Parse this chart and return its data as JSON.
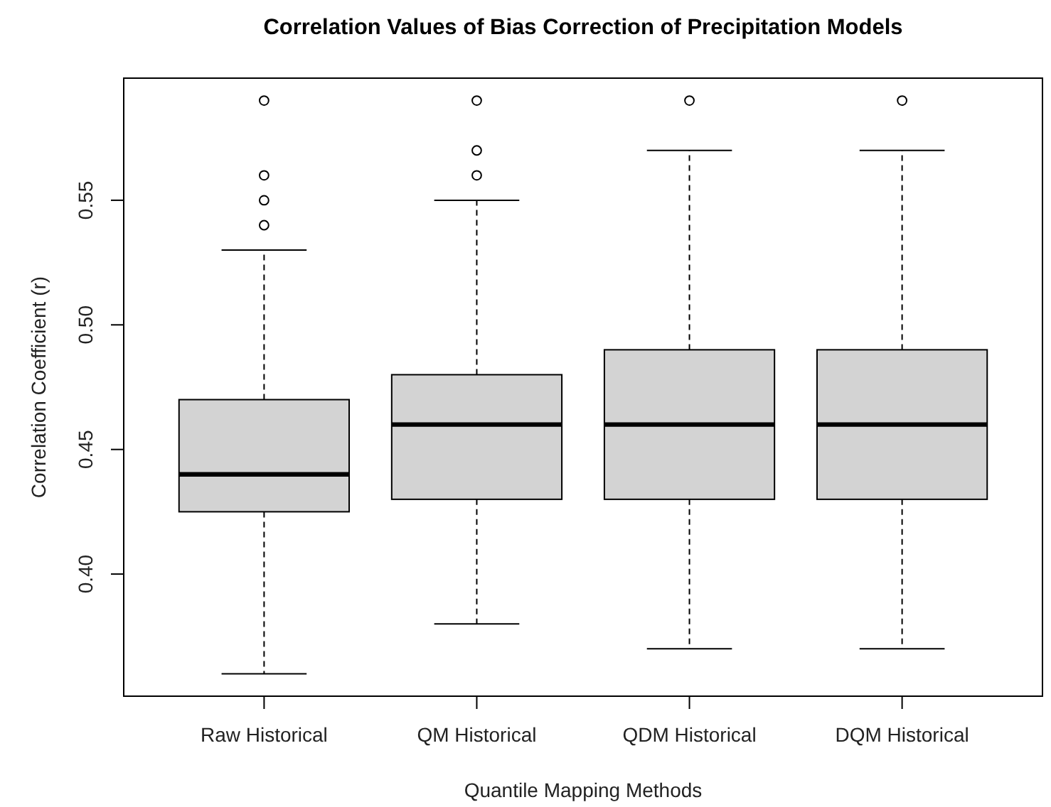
{
  "chart_data": {
    "type": "box",
    "title": "Correlation Values of Bias Correction of Precipitation Models",
    "xlabel": "Quantile Mapping Methods",
    "ylabel": "Correlation Coefficient (r)",
    "categories": [
      "Raw Historical",
      "QM Historical",
      "QDM Historical",
      "DQM Historical"
    ],
    "boxes": [
      {
        "low": 0.36,
        "q1": 0.425,
        "median": 0.44,
        "q3": 0.47,
        "high": 0.53,
        "outliers": [
          0.54,
          0.55,
          0.56,
          0.59
        ]
      },
      {
        "low": 0.38,
        "q1": 0.43,
        "median": 0.46,
        "q3": 0.48,
        "high": 0.55,
        "outliers": [
          0.56,
          0.57,
          0.59
        ]
      },
      {
        "low": 0.37,
        "q1": 0.43,
        "median": 0.46,
        "q3": 0.49,
        "high": 0.57,
        "outliers": [
          0.59
        ]
      },
      {
        "low": 0.37,
        "q1": 0.43,
        "median": 0.46,
        "q3": 0.49,
        "high": 0.57,
        "outliers": [
          0.59
        ]
      }
    ],
    "color": "#d3d3d3",
    "ylim": [
      0.351,
      0.599
    ],
    "yticks": [
      {
        "value": 0.4,
        "label": "0.40"
      },
      0.45,
      {
        "value": 0.5,
        "label": "0.50"
      },
      0.55
    ],
    "line_style": "dashed",
    "marker": "circle"
  }
}
